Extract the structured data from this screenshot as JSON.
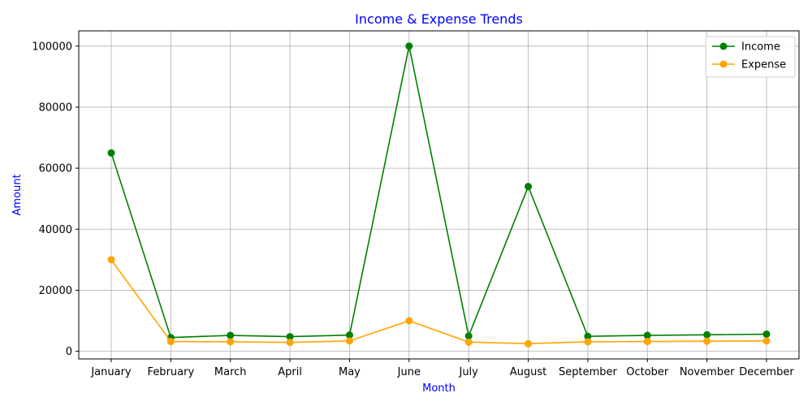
{
  "chart_data": {
    "type": "line",
    "title": "Income & Expense Trends",
    "xlabel": "Month",
    "ylabel": "Amount",
    "categories": [
      "January",
      "February",
      "March",
      "April",
      "May",
      "June",
      "July",
      "August",
      "September",
      "October",
      "November",
      "December"
    ],
    "series": [
      {
        "name": "Income",
        "color": "#008000",
        "values": [
          65000,
          4500,
          5200,
          4800,
          5300,
          100000,
          5000,
          54000,
          4900,
          5200,
          5400,
          5600
        ]
      },
      {
        "name": "Expense",
        "color": "#ffa500",
        "values": [
          30000,
          3200,
          3100,
          2900,
          3400,
          10000,
          3000,
          2500,
          3100,
          3200,
          3300,
          3400
        ]
      }
    ],
    "ylim": [
      -2500,
      105000
    ],
    "yticks": [
      0,
      20000,
      40000,
      60000,
      80000,
      100000
    ],
    "grid": true,
    "legend_position": "top-right",
    "title_color": "#0000ff",
    "label_color": "#0000ff"
  }
}
